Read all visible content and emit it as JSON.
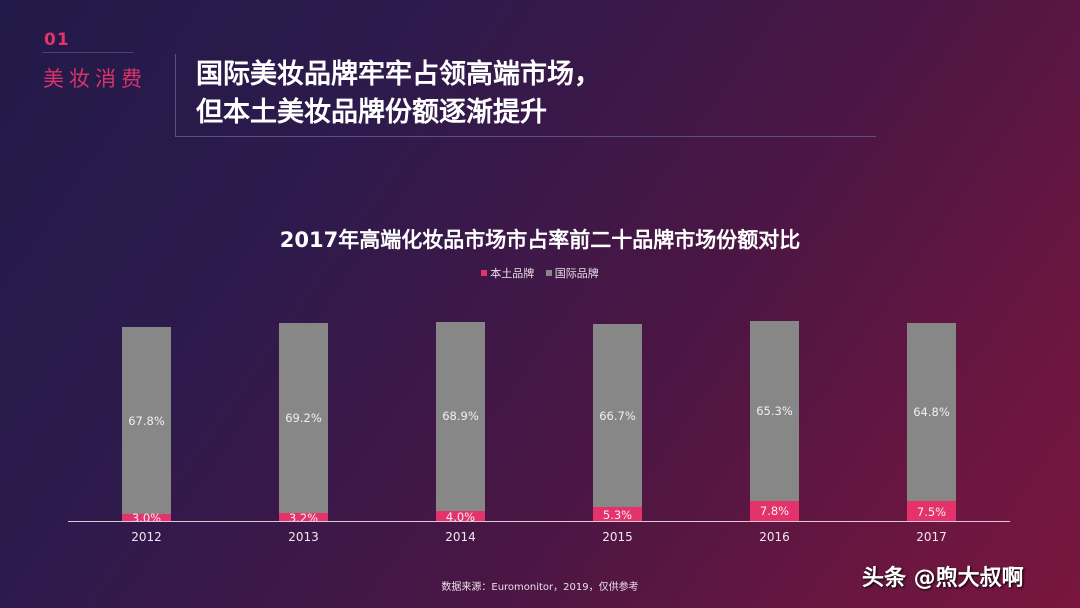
{
  "section": {
    "number": "01",
    "label": "美妆消费"
  },
  "headline": {
    "line1": "国际美妆品牌牢牢占领高端市场，",
    "line2": "但本土美妆品牌份额逐渐提升"
  },
  "colors": {
    "domestic": "#e4336b",
    "international": "#878787",
    "accent": "#e0336a"
  },
  "chart_data": {
    "type": "bar",
    "stacked": true,
    "title": "2017年高端化妆品市场市占率前二十品牌市场份额对比",
    "categories": [
      "2012",
      "2013",
      "2014",
      "2015",
      "2016",
      "2017"
    ],
    "series": [
      {
        "name": "本土品牌",
        "values": [
          3.0,
          3.2,
          4.0,
          5.3,
          7.8,
          7.5
        ],
        "labels": [
          "3.0%",
          "3.2%",
          "4.0%",
          "5.3%",
          "7.8%",
          "7.5%"
        ]
      },
      {
        "name": "国际品牌",
        "values": [
          67.8,
          69.2,
          68.9,
          66.7,
          65.3,
          64.8
        ],
        "labels": [
          "67.8%",
          "69.2%",
          "68.9%",
          "66.7%",
          "65.3%",
          "64.8%"
        ]
      }
    ],
    "xlabel": "",
    "ylabel": "",
    "legend_position": "top",
    "grid": false,
    "unit": "%"
  },
  "legend": {
    "domestic": "本土品牌",
    "international": "国际品牌"
  },
  "source": "数据来源：Euromonitor，2019，仅供参考",
  "watermark": "头条 @煦大叔啊"
}
